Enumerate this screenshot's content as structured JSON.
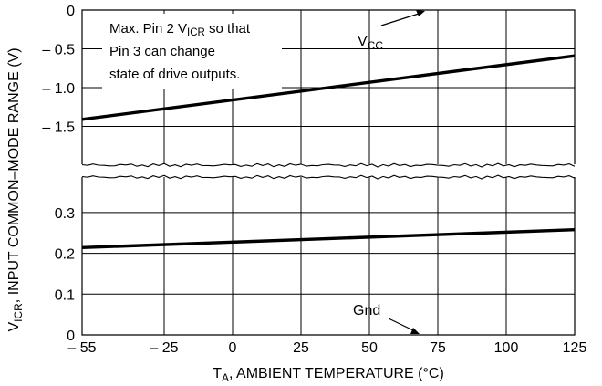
{
  "chart_data": {
    "type": "line",
    "xlabel": "T",
    "xlabel_sub": "A",
    "xlabel_rest": ", AMBIENT TEMPERATURE (°C)",
    "ylabel": "V",
    "ylabel_sub": "ICR",
    "ylabel_rest": ", INPUT COMMON–MODE RANGE (V)",
    "x_ticks": [
      "– 55",
      "– 25",
      "0",
      "25",
      "50",
      "75",
      "100",
      "125"
    ],
    "x_tick_values": [
      -55,
      -25,
      0,
      25,
      50,
      75,
      100,
      125
    ],
    "xlim": [
      -55,
      125
    ],
    "grid": true,
    "panels": [
      {
        "name": "upper",
        "ylim": [
          -1.9,
          0
        ],
        "y_ticks": [
          "0",
          "– 0.5",
          "– 1.0",
          "– 1.5"
        ],
        "y_tick_values": [
          0,
          -0.5,
          -1.0,
          -1.5
        ],
        "reference": "V",
        "reference_sub": "CC",
        "series": [
          {
            "x": [
              -55,
              125
            ],
            "y": [
              -1.41,
              -0.59
            ]
          }
        ]
      },
      {
        "name": "lower",
        "ylim": [
          0,
          0.38
        ],
        "y_ticks": [
          "0.3",
          "0.2",
          "0.1",
          "0"
        ],
        "y_tick_values": [
          0.3,
          0.2,
          0.1,
          0
        ],
        "reference": "Gnd",
        "series": [
          {
            "x": [
              -55,
              125
            ],
            "y": [
              0.214,
              0.258
            ]
          }
        ]
      }
    ],
    "annotation": {
      "line1_prefix": "Max. Pin 2 V",
      "line1_sub": "ICR",
      "line1_suffix": " so that",
      "line2": "Pin 3 can change",
      "line3": "state of drive outputs."
    }
  }
}
